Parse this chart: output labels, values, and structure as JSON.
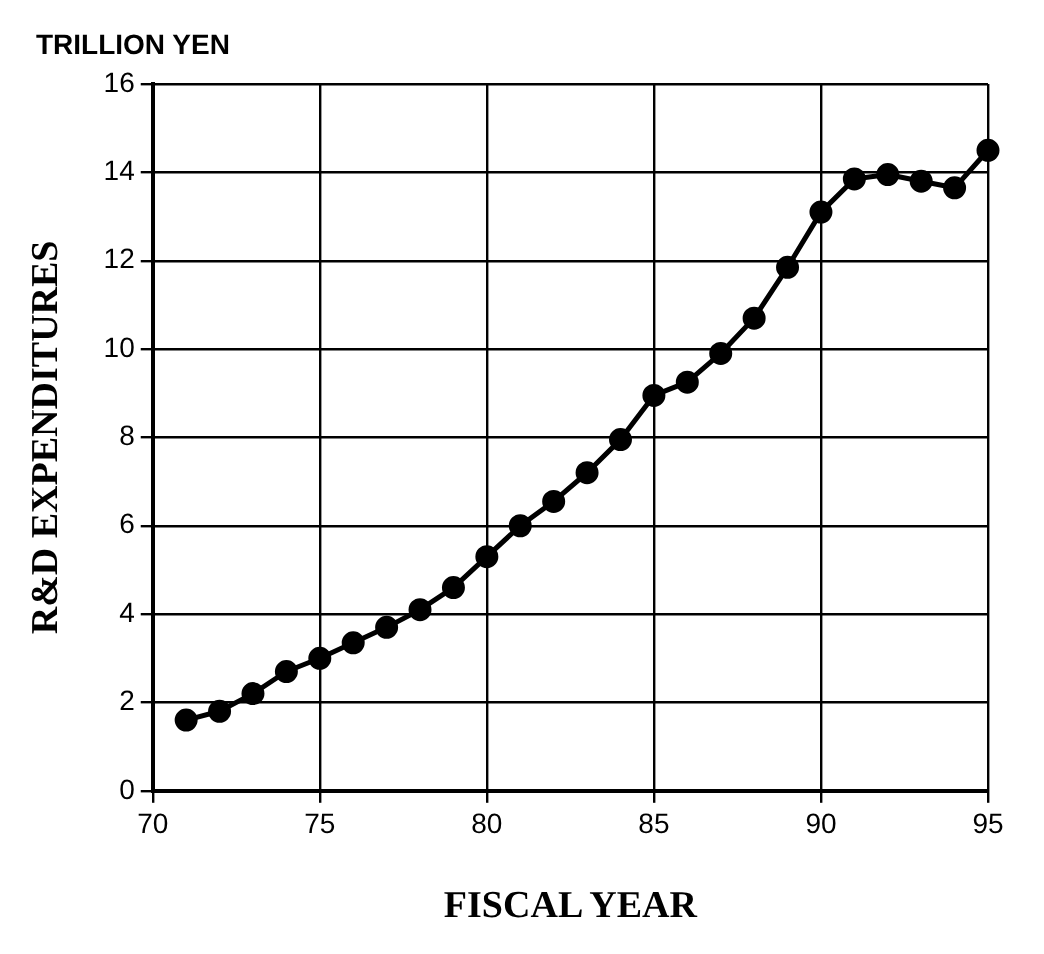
{
  "chart_data": {
    "type": "line",
    "ylabel": "TRILLION YEN",
    "xlabel": "FISCAL YEAR",
    "y2label": "R&D EXPENDITURES",
    "x": [
      71,
      72,
      73,
      74,
      75,
      76,
      77,
      78,
      79,
      80,
      81,
      82,
      83,
      84,
      85,
      86,
      87,
      88,
      89,
      90,
      91,
      92,
      93,
      94,
      95
    ],
    "series": [
      {
        "color": "#000000",
        "values": [
          1.6,
          1.8,
          2.2,
          2.7,
          3.0,
          3.35,
          3.7,
          4.1,
          4.6,
          5.3,
          6.0,
          6.55,
          7.2,
          7.95,
          8.95,
          9.25,
          9.9,
          10.7,
          11.85,
          13.1,
          13.85,
          13.95,
          13.8,
          13.65,
          14.5
        ]
      }
    ],
    "xlim": [
      70,
      95
    ],
    "xticks": [
      70,
      75,
      80,
      85,
      90,
      95
    ],
    "ylim": [
      0,
      16
    ],
    "yticks": [
      0,
      2,
      4,
      6,
      8,
      10,
      12,
      14,
      16
    ],
    "grid": true,
    "marker": "circle",
    "line_style": "solid",
    "legend": false
  }
}
